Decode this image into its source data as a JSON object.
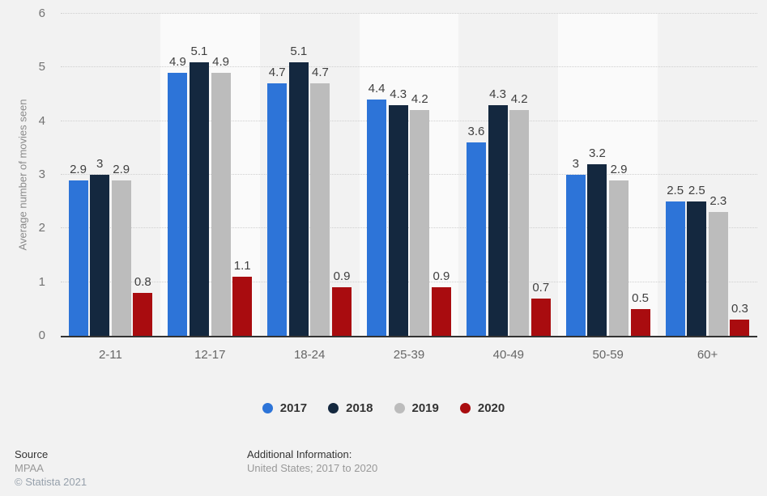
{
  "chart_data": {
    "type": "bar",
    "title": "",
    "ylabel": "Average number of movies seen",
    "xlabel": "",
    "ylim": [
      0,
      6
    ],
    "yticks": [
      0,
      1,
      2,
      3,
      4,
      5,
      6
    ],
    "grid": "horizontal-dotted",
    "legend_position": "bottom",
    "categories": [
      "2-11",
      "12-17",
      "18-24",
      "25-39",
      "40-49",
      "50-59",
      "60+"
    ],
    "series": [
      {
        "name": "2017",
        "color": "#2d74d8",
        "values": [
          2.9,
          4.9,
          4.7,
          4.4,
          3.6,
          3,
          2.5
        ]
      },
      {
        "name": "2018",
        "color": "#14283f",
        "values": [
          3,
          5.1,
          5.1,
          4.3,
          4.3,
          3.2,
          2.5
        ]
      },
      {
        "name": "2019",
        "color": "#bcbcbc",
        "values": [
          2.9,
          4.9,
          4.7,
          4.2,
          4.2,
          2.9,
          2.3
        ]
      },
      {
        "name": "2020",
        "color": "#a90c0f",
        "values": [
          0.8,
          1.1,
          0.9,
          0.9,
          0.7,
          0.5,
          0.3
        ]
      }
    ]
  },
  "colors": {
    "page_background": "#f2f2f2",
    "band_alternate": "#fafafa",
    "gridline": "#cfcfcf",
    "axis_line": "#333333",
    "value_label": "#404040",
    "tick_label": "#737373",
    "category_label": "#666666"
  },
  "footer": {
    "source_label": "Source",
    "source_value": "MPAA",
    "copyright": "© Statista 2021",
    "additional_info_label": "Additional Information:",
    "additional_info_value": "United States; 2017 to 2020"
  }
}
